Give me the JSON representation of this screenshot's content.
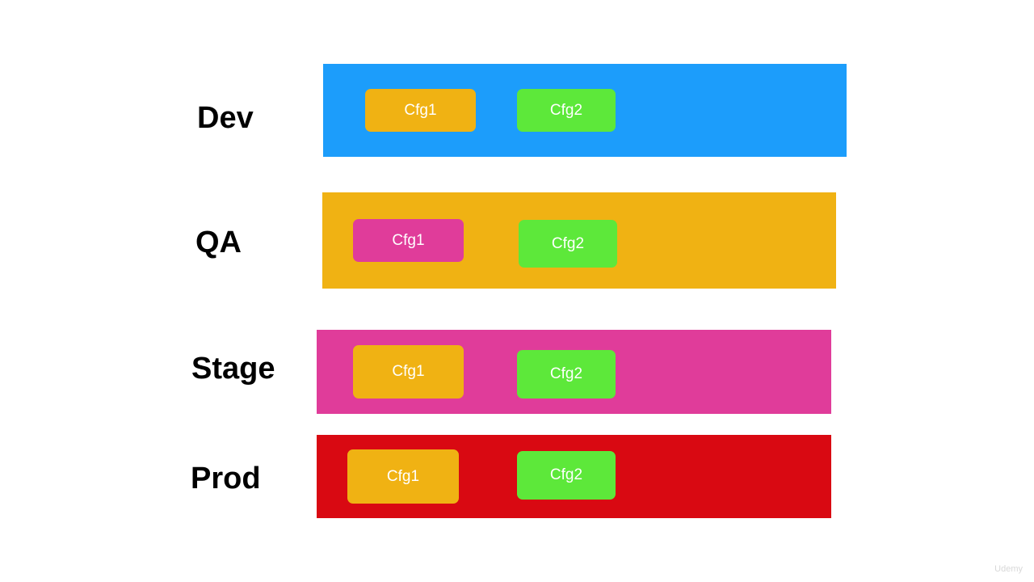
{
  "rows": [
    {
      "label": "Dev",
      "configs": [
        "Cfg1",
        "Cfg2"
      ]
    },
    {
      "label": "QA",
      "configs": [
        "Cfg1",
        "Cfg2"
      ]
    },
    {
      "label": "Stage",
      "configs": [
        "Cfg1",
        "Cfg2"
      ]
    },
    {
      "label": "Prod",
      "configs": [
        "Cfg1",
        "Cfg2"
      ]
    }
  ],
  "watermark": "Udemy"
}
